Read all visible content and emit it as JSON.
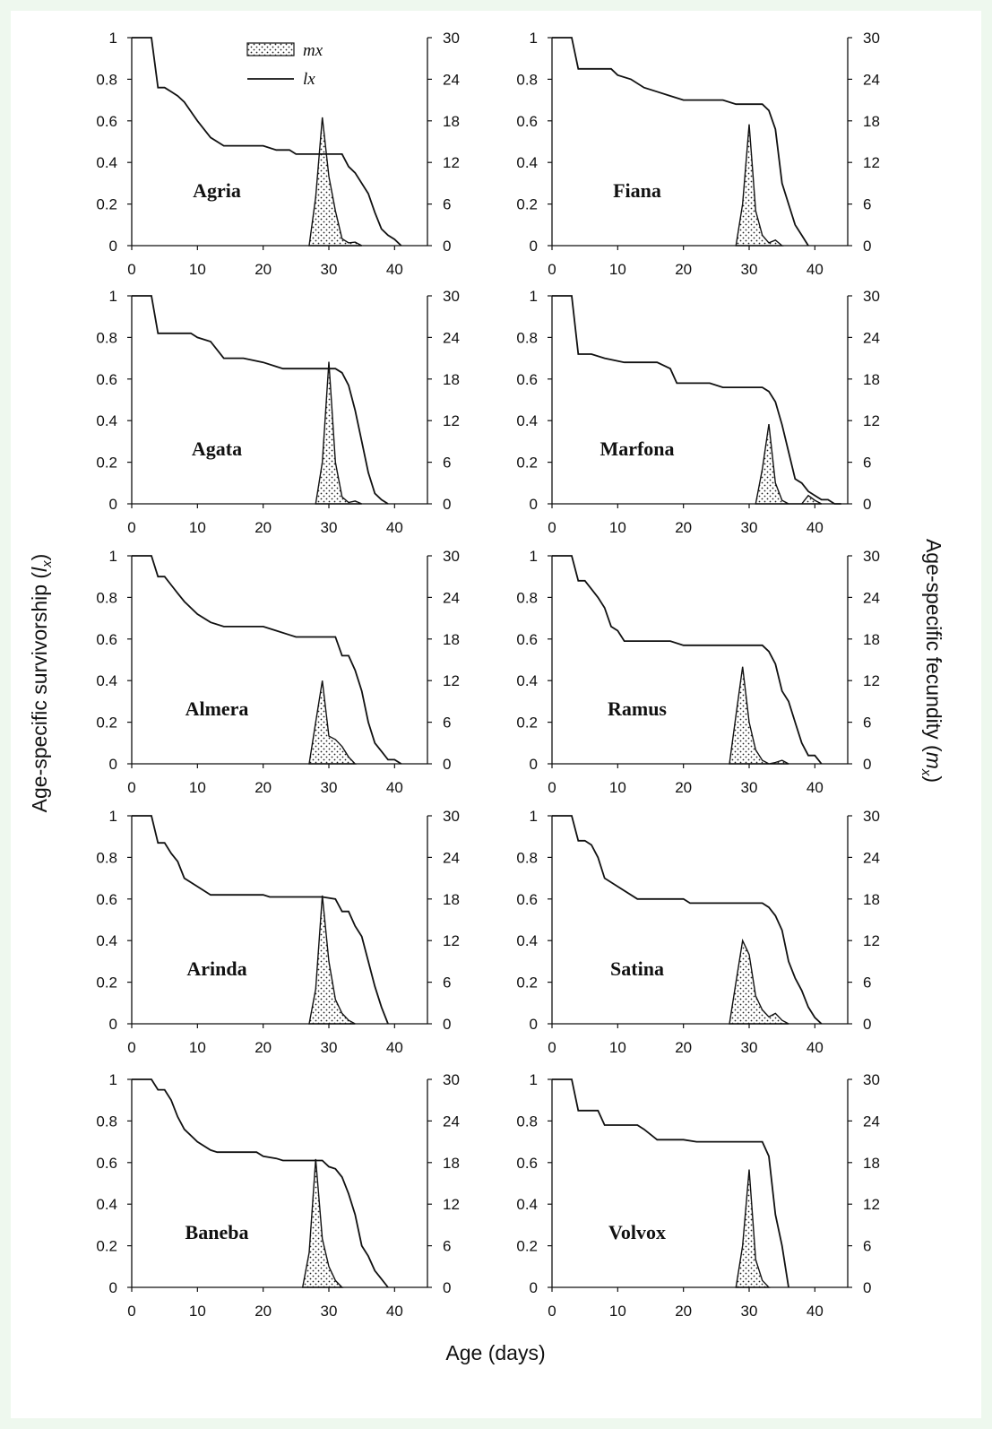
{
  "chart_data": {
    "type": "line",
    "xlabel": "Age (days)",
    "ylabel_left": [
      "Age-specific survivorship (",
      "l",
      "x",
      ")"
    ],
    "ylabel_right": [
      "Age-specific fecundity (",
      "m",
      "x",
      ")"
    ],
    "x_ticks": [
      "0",
      "10",
      "20",
      "30",
      "40"
    ],
    "left_ticks": [
      "0",
      "0.2",
      "0.4",
      "0.6",
      "0.8",
      "1"
    ],
    "right_ticks": [
      "0",
      "6",
      "12",
      "18",
      "24",
      "30"
    ],
    "xlim": [
      0,
      45
    ],
    "ylim_left": [
      0,
      1
    ],
    "ylim_right": [
      0,
      30
    ],
    "grid": false,
    "legend": {
      "placement": "top-center of first panel",
      "items": [
        {
          "label": "mx",
          "style": "dotted-fill"
        },
        {
          "label": "lx",
          "style": "line"
        }
      ]
    },
    "panels": [
      {
        "name": "Agria",
        "lx": [
          [
            0,
            1
          ],
          [
            3,
            1
          ],
          [
            4,
            0.76
          ],
          [
            5,
            0.76
          ],
          [
            6,
            0.74
          ],
          [
            7,
            0.72
          ],
          [
            8,
            0.69
          ],
          [
            10,
            0.6
          ],
          [
            12,
            0.52
          ],
          [
            14,
            0.48
          ],
          [
            20,
            0.48
          ],
          [
            22,
            0.46
          ],
          [
            24,
            0.46
          ],
          [
            25,
            0.44
          ],
          [
            32,
            0.44
          ],
          [
            33,
            0.38
          ],
          [
            34,
            0.35
          ],
          [
            36,
            0.25
          ],
          [
            37,
            0.16
          ],
          [
            38,
            0.08
          ],
          [
            39,
            0.05
          ],
          [
            40,
            0.03
          ],
          [
            41,
            0
          ]
        ],
        "mx": [
          [
            27,
            0
          ],
          [
            28,
            7
          ],
          [
            29,
            18.5
          ],
          [
            30,
            10
          ],
          [
            31,
            5
          ],
          [
            32,
            1
          ],
          [
            33,
            0.4
          ],
          [
            34,
            0.5
          ],
          [
            35,
            0
          ]
        ]
      },
      {
        "name": "Fiana",
        "lx": [
          [
            0,
            1
          ],
          [
            3,
            1
          ],
          [
            4,
            0.85
          ],
          [
            9,
            0.85
          ],
          [
            10,
            0.82
          ],
          [
            12,
            0.8
          ],
          [
            14,
            0.76
          ],
          [
            16,
            0.74
          ],
          [
            18,
            0.72
          ],
          [
            20,
            0.7
          ],
          [
            26,
            0.7
          ],
          [
            28,
            0.68
          ],
          [
            32,
            0.68
          ],
          [
            33,
            0.65
          ],
          [
            34,
            0.56
          ],
          [
            35,
            0.3
          ],
          [
            36,
            0.2
          ],
          [
            37,
            0.1
          ],
          [
            38,
            0.05
          ],
          [
            39,
            0
          ]
        ],
        "mx": [
          [
            28,
            0
          ],
          [
            29,
            6
          ],
          [
            30,
            17.5
          ],
          [
            31,
            5
          ],
          [
            32,
            1.5
          ],
          [
            33,
            0.4
          ],
          [
            34,
            0.8
          ],
          [
            35,
            0
          ]
        ]
      },
      {
        "name": "Agata",
        "lx": [
          [
            0,
            1
          ],
          [
            3,
            1
          ],
          [
            4,
            0.82
          ],
          [
            9,
            0.82
          ],
          [
            10,
            0.8
          ],
          [
            12,
            0.78
          ],
          [
            14,
            0.7
          ],
          [
            17,
            0.7
          ],
          [
            20,
            0.68
          ],
          [
            22,
            0.66
          ],
          [
            23,
            0.65
          ],
          [
            31,
            0.65
          ],
          [
            32,
            0.63
          ],
          [
            33,
            0.57
          ],
          [
            34,
            0.45
          ],
          [
            35,
            0.3
          ],
          [
            36,
            0.15
          ],
          [
            37,
            0.05
          ],
          [
            38,
            0.02
          ],
          [
            39,
            0
          ]
        ],
        "mx": [
          [
            28,
            0
          ],
          [
            29,
            6
          ],
          [
            30,
            20.5
          ],
          [
            31,
            6
          ],
          [
            32,
            1
          ],
          [
            33,
            0.2
          ],
          [
            34,
            0.4
          ],
          [
            35,
            0
          ]
        ]
      },
      {
        "name": "Marfona",
        "lx": [
          [
            0,
            1
          ],
          [
            3,
            1
          ],
          [
            4,
            0.72
          ],
          [
            6,
            0.72
          ],
          [
            8,
            0.7
          ],
          [
            11,
            0.68
          ],
          [
            16,
            0.68
          ],
          [
            18,
            0.65
          ],
          [
            19,
            0.58
          ],
          [
            24,
            0.58
          ],
          [
            26,
            0.56
          ],
          [
            32,
            0.56
          ],
          [
            33,
            0.54
          ],
          [
            34,
            0.49
          ],
          [
            35,
            0.38
          ],
          [
            36,
            0.25
          ],
          [
            37,
            0.12
          ],
          [
            38,
            0.1
          ],
          [
            39,
            0.06
          ],
          [
            40,
            0.04
          ],
          [
            41,
            0.02
          ],
          [
            42,
            0.02
          ],
          [
            43,
            0
          ],
          [
            44,
            0
          ]
        ],
        "mx": [
          [
            31,
            0
          ],
          [
            32,
            5
          ],
          [
            33,
            11.5
          ],
          [
            34,
            3
          ],
          [
            35,
            0.5
          ],
          [
            36,
            0
          ],
          [
            38,
            0
          ],
          [
            39,
            1.2
          ],
          [
            40,
            0.5
          ],
          [
            41,
            0
          ]
        ]
      },
      {
        "name": "Almera",
        "lx": [
          [
            0,
            1
          ],
          [
            3,
            1
          ],
          [
            4,
            0.9
          ],
          [
            5,
            0.9
          ],
          [
            6,
            0.86
          ],
          [
            7,
            0.82
          ],
          [
            8,
            0.78
          ],
          [
            10,
            0.72
          ],
          [
            12,
            0.68
          ],
          [
            14,
            0.66
          ],
          [
            20,
            0.66
          ],
          [
            22,
            0.64
          ],
          [
            24,
            0.62
          ],
          [
            25,
            0.61
          ],
          [
            31,
            0.61
          ],
          [
            32,
            0.52
          ],
          [
            33,
            0.52
          ],
          [
            34,
            0.45
          ],
          [
            35,
            0.35
          ],
          [
            36,
            0.2
          ],
          [
            37,
            0.1
          ],
          [
            38,
            0.06
          ],
          [
            39,
            0.02
          ],
          [
            40,
            0.02
          ],
          [
            41,
            0
          ]
        ],
        "mx": [
          [
            27,
            0
          ],
          [
            28,
            6
          ],
          [
            29,
            12
          ],
          [
            30,
            4
          ],
          [
            31,
            3.5
          ],
          [
            32,
            2.5
          ],
          [
            33,
            1
          ],
          [
            34,
            0
          ]
        ]
      },
      {
        "name": "Ramus",
        "lx": [
          [
            0,
            1
          ],
          [
            3,
            1
          ],
          [
            4,
            0.88
          ],
          [
            5,
            0.88
          ],
          [
            6,
            0.84
          ],
          [
            7,
            0.8
          ],
          [
            8,
            0.75
          ],
          [
            9,
            0.66
          ],
          [
            10,
            0.64
          ],
          [
            11,
            0.59
          ],
          [
            18,
            0.59
          ],
          [
            20,
            0.57
          ],
          [
            32,
            0.57
          ],
          [
            33,
            0.54
          ],
          [
            34,
            0.48
          ],
          [
            35,
            0.35
          ],
          [
            36,
            0.3
          ],
          [
            37,
            0.2
          ],
          [
            38,
            0.1
          ],
          [
            39,
            0.04
          ],
          [
            40,
            0.04
          ],
          [
            41,
            0
          ]
        ],
        "mx": [
          [
            27,
            0
          ],
          [
            28,
            7
          ],
          [
            29,
            14
          ],
          [
            30,
            6
          ],
          [
            31,
            2
          ],
          [
            32,
            0.5
          ],
          [
            33,
            0
          ],
          [
            34,
            0.2
          ],
          [
            35,
            0.5
          ],
          [
            36,
            0
          ]
        ]
      },
      {
        "name": "Arinda",
        "lx": [
          [
            0,
            1
          ],
          [
            3,
            1
          ],
          [
            4,
            0.87
          ],
          [
            5,
            0.87
          ],
          [
            6,
            0.82
          ],
          [
            7,
            0.78
          ],
          [
            8,
            0.7
          ],
          [
            10,
            0.66
          ],
          [
            12,
            0.62
          ],
          [
            20,
            0.62
          ],
          [
            21,
            0.61
          ],
          [
            29,
            0.61
          ],
          [
            31,
            0.6
          ],
          [
            32,
            0.54
          ],
          [
            33,
            0.54
          ],
          [
            34,
            0.47
          ],
          [
            35,
            0.42
          ],
          [
            36,
            0.3
          ],
          [
            37,
            0.18
          ],
          [
            38,
            0.08
          ],
          [
            39,
            0
          ]
        ],
        "mx": [
          [
            27,
            0
          ],
          [
            28,
            5
          ],
          [
            29,
            18.5
          ],
          [
            30,
            9
          ],
          [
            31,
            3.5
          ],
          [
            32,
            1.5
          ],
          [
            33,
            0.5
          ],
          [
            34,
            0
          ]
        ]
      },
      {
        "name": "Satina",
        "lx": [
          [
            0,
            1
          ],
          [
            3,
            1
          ],
          [
            4,
            0.88
          ],
          [
            5,
            0.88
          ],
          [
            6,
            0.86
          ],
          [
            7,
            0.8
          ],
          [
            8,
            0.7
          ],
          [
            10,
            0.66
          ],
          [
            13,
            0.6
          ],
          [
            20,
            0.6
          ],
          [
            21,
            0.58
          ],
          [
            32,
            0.58
          ],
          [
            33,
            0.56
          ],
          [
            34,
            0.52
          ],
          [
            35,
            0.45
          ],
          [
            36,
            0.3
          ],
          [
            37,
            0.22
          ],
          [
            38,
            0.16
          ],
          [
            39,
            0.08
          ],
          [
            40,
            0.03
          ],
          [
            41,
            0
          ]
        ],
        "mx": [
          [
            27,
            0
          ],
          [
            28,
            6
          ],
          [
            29,
            12
          ],
          [
            30,
            10
          ],
          [
            31,
            4
          ],
          [
            32,
            2
          ],
          [
            33,
            1
          ],
          [
            34,
            1.5
          ],
          [
            35,
            0.5
          ],
          [
            36,
            0
          ]
        ]
      },
      {
        "name": "Baneba",
        "lx": [
          [
            0,
            1
          ],
          [
            3,
            1
          ],
          [
            4,
            0.95
          ],
          [
            5,
            0.95
          ],
          [
            6,
            0.9
          ],
          [
            7,
            0.82
          ],
          [
            8,
            0.76
          ],
          [
            10,
            0.7
          ],
          [
            12,
            0.66
          ],
          [
            13,
            0.65
          ],
          [
            19,
            0.65
          ],
          [
            20,
            0.63
          ],
          [
            22,
            0.62
          ],
          [
            23,
            0.61
          ],
          [
            29,
            0.61
          ],
          [
            30,
            0.58
          ],
          [
            31,
            0.57
          ],
          [
            32,
            0.53
          ],
          [
            33,
            0.45
          ],
          [
            34,
            0.35
          ],
          [
            35,
            0.2
          ],
          [
            36,
            0.15
          ],
          [
            37,
            0.08
          ],
          [
            38,
            0.04
          ],
          [
            39,
            0
          ]
        ],
        "mx": [
          [
            26,
            0
          ],
          [
            27,
            5
          ],
          [
            28,
            18.5
          ],
          [
            29,
            7
          ],
          [
            30,
            3
          ],
          [
            31,
            1
          ],
          [
            32,
            0
          ]
        ]
      },
      {
        "name": "Volvox",
        "lx": [
          [
            0,
            1
          ],
          [
            3,
            1
          ],
          [
            4,
            0.85
          ],
          [
            7,
            0.85
          ],
          [
            8,
            0.78
          ],
          [
            13,
            0.78
          ],
          [
            14,
            0.76
          ],
          [
            16,
            0.71
          ],
          [
            20,
            0.71
          ],
          [
            22,
            0.7
          ],
          [
            32,
            0.7
          ],
          [
            33,
            0.63
          ],
          [
            34,
            0.35
          ],
          [
            35,
            0.2
          ],
          [
            36,
            0
          ]
        ],
        "mx": [
          [
            28,
            0
          ],
          [
            29,
            6
          ],
          [
            30,
            17
          ],
          [
            31,
            4
          ],
          [
            32,
            1
          ],
          [
            33,
            0
          ]
        ]
      }
    ]
  }
}
